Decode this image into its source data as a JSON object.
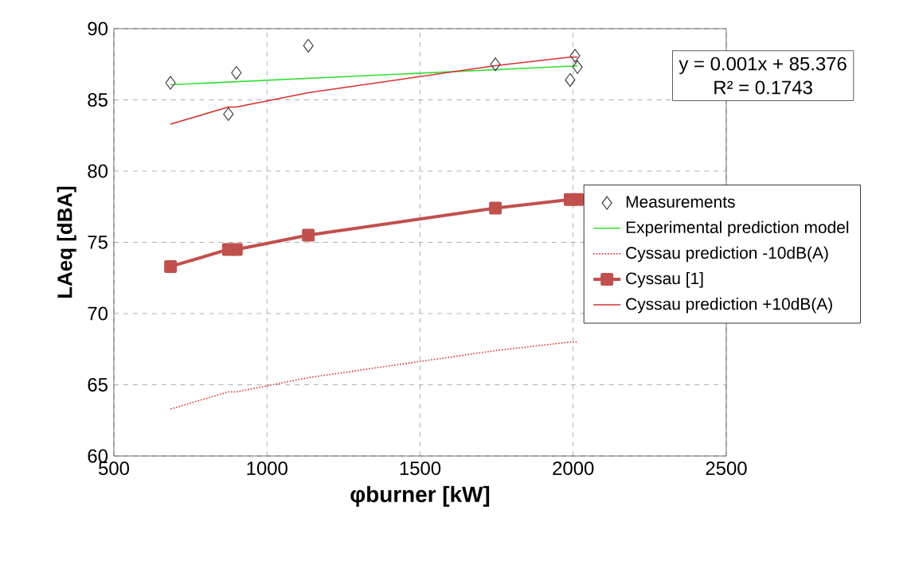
{
  "chart_data": {
    "type": "line",
    "xlabel": "φburner [kW]",
    "ylabel": "LAeq [dBA]",
    "xlim": [
      500,
      2500
    ],
    "xticks": [
      500,
      1000,
      1500,
      2000,
      2500
    ],
    "ylim": [
      60,
      90
    ],
    "yticks": [
      60,
      65,
      70,
      75,
      80,
      85,
      90
    ],
    "grid": true,
    "legend": "right",
    "annotations": [
      "y = 0.001x + 85.376",
      "R² = 0.1743"
    ],
    "series": [
      {
        "name": "Measurements",
        "type": "scatter",
        "marker": "diamond",
        "color": "#404040",
        "x": [
          685,
          874,
          900,
          1135,
          1746,
          1990,
          2006,
          2014
        ],
        "values": [
          86.2,
          84.0,
          86.9,
          88.8,
          87.5,
          86.4,
          88.1,
          87.3
        ]
      },
      {
        "name": "Experimental prediction model",
        "type": "line",
        "marker": "none",
        "line_style": "solid",
        "color": "#33e033",
        "x": [
          685,
          2014
        ],
        "values": [
          86.06,
          87.39
        ]
      },
      {
        "name": "Cyssau prediction -10dB(A)",
        "type": "line",
        "marker": "none",
        "line_style": "dotted",
        "color": "#d83030",
        "x": [
          685,
          874,
          900,
          1135,
          1746,
          1990,
          2014
        ],
        "values": [
          63.3,
          64.5,
          64.5,
          65.5,
          67.4,
          68.0,
          68.0
        ]
      },
      {
        "name": "Cyssau [1]",
        "type": "line",
        "marker": "square",
        "line_style": "solid",
        "color": "#c0504d",
        "x": [
          685,
          874,
          900,
          1135,
          1746,
          1990,
          2014
        ],
        "values": [
          73.3,
          74.5,
          74.5,
          75.5,
          77.4,
          78.0,
          78.0
        ]
      },
      {
        "name": "Cyssau prediction +10dB(A)",
        "type": "line",
        "marker": "none",
        "line_style": "solid",
        "color": "#d83030",
        "x": [
          685,
          874,
          900,
          1135,
          1746,
          1990,
          2014
        ],
        "values": [
          83.3,
          84.5,
          84.5,
          85.5,
          87.4,
          88.0,
          88.0
        ]
      }
    ]
  }
}
